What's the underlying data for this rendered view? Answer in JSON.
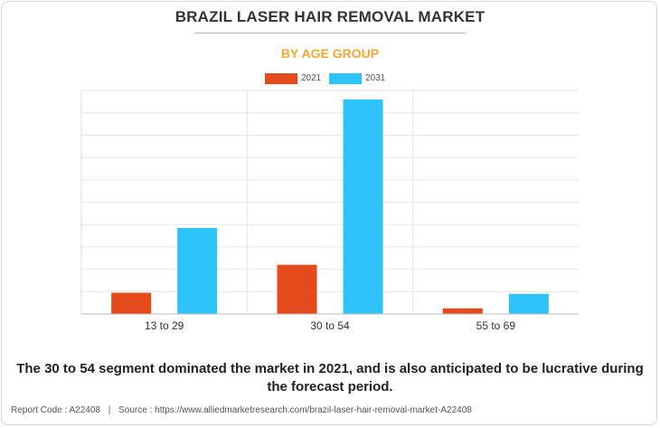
{
  "title": "BRAZIL LASER HAIR REMOVAL MARKET",
  "subtitle": "BY AGE GROUP",
  "headline": "The 30 to 54 segment dominated the market in 2021, and is also anticipated to be lucrative during the forecast period.",
  "footer": {
    "report_code": "Report Code : A22408",
    "separator": "|",
    "source": "Source : https://www.alliedmarketresearch.com/brazil-laser-hair-removal-market-A22408"
  },
  "colors": {
    "series_2021": "#e44a1a",
    "series_2031": "#2fc3fb",
    "title": "#333333",
    "subtitle": "#f7a731"
  },
  "chart_data": {
    "type": "bar",
    "categories": [
      "13 to 29",
      "30 to 54",
      "55 to 69"
    ],
    "series": [
      {
        "name": "2021",
        "values": [
          0.95,
          2.2,
          0.25
        ]
      },
      {
        "name": "2031",
        "values": [
          3.85,
          9.6,
          0.9
        ]
      }
    ],
    "ylim": [
      0,
      10
    ],
    "y_gridlines": 10,
    "y_tick_labels_shown": false,
    "grid": true,
    "legend": "top-center"
  }
}
